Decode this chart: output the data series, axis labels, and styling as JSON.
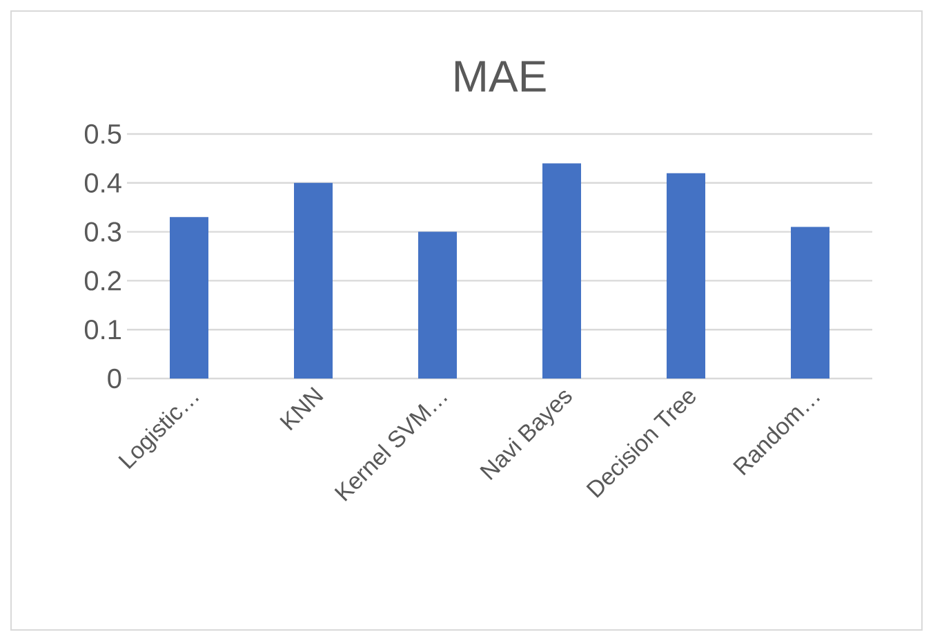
{
  "chart_data": {
    "type": "bar",
    "title": "MAE",
    "categories": [
      "Logistic…",
      "KNN",
      "Kernel SVM…",
      "Navi Bayes",
      "Decision Tree",
      "Random…"
    ],
    "values": [
      0.33,
      0.4,
      0.3,
      0.44,
      0.42,
      0.31
    ],
    "color": "#4472c4",
    "ylim": [
      0,
      0.5
    ],
    "yticks": [
      0,
      0.1,
      0.2,
      0.3,
      0.4,
      0.5
    ],
    "grid": "y"
  }
}
